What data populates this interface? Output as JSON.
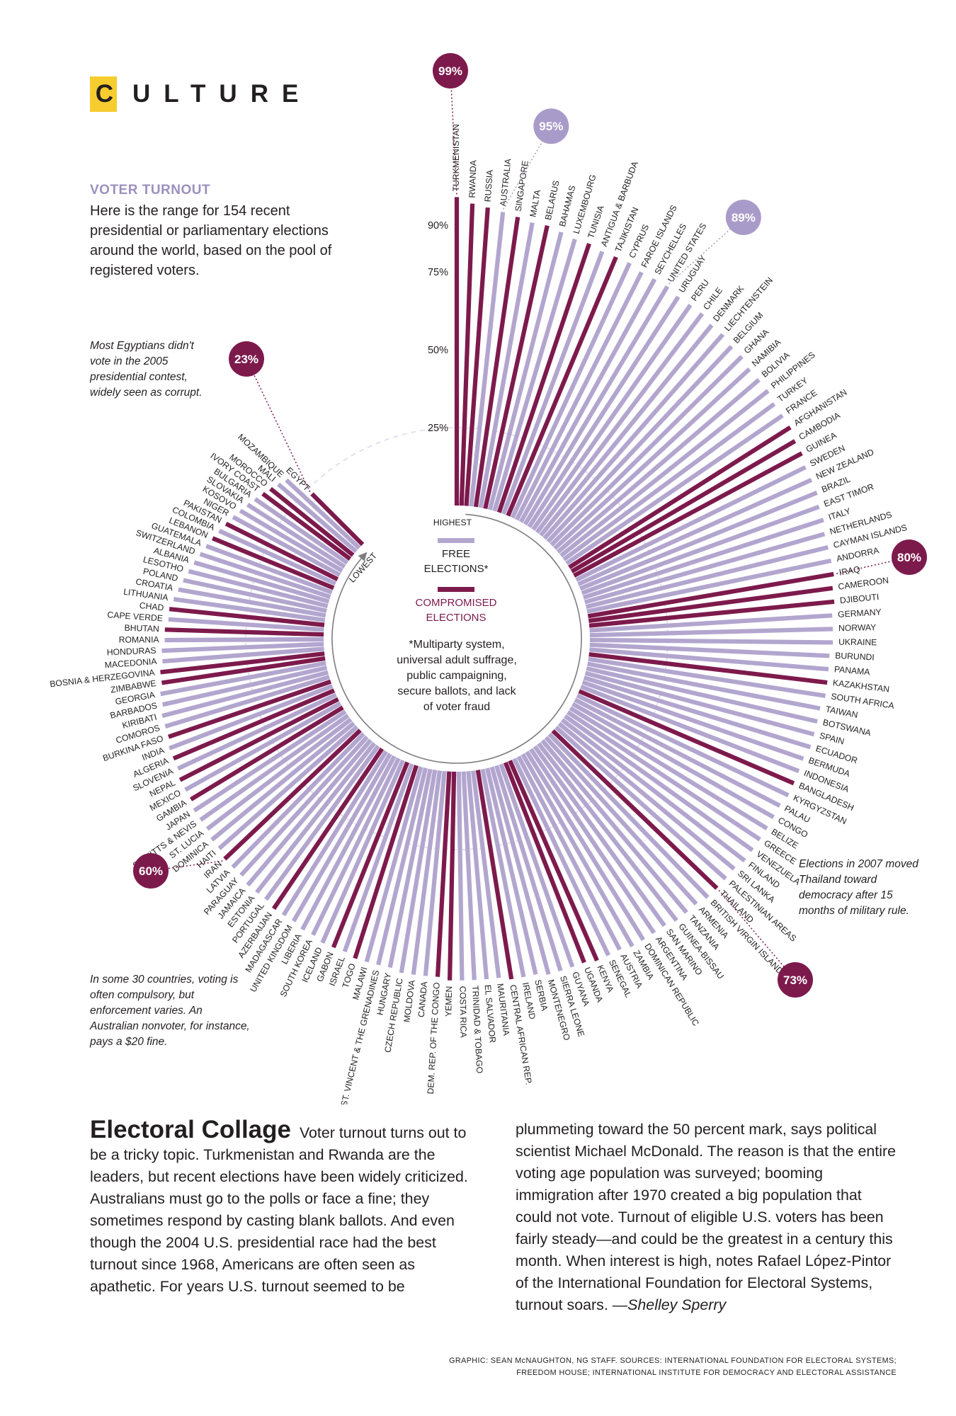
{
  "header": {
    "first_letter": "C",
    "rest": "ULTURE"
  },
  "intro": {
    "title": "VOTER TURNOUT",
    "text": "Here is the range for 154 recent presidential or parliamentary elections around the world, based on the pool of registered voters."
  },
  "notes": {
    "egypt": "Most Egyptians didn't vote in the 2005 presidential contest, widely seen as corrupt.",
    "compulsory": "In some 30 countries, voting is often compulsory, but enforcement varies. An Australian nonvoter, for instance, pays a $20 fine.",
    "thailand": "Elections in 2007 moved Thailand toward democracy after 15 months of military rule."
  },
  "legend": {
    "free_label_1": "FREE",
    "free_label_2": "ELECTIONS*",
    "compromised_label_1": "COMPROMISED",
    "compromised_label_2": "ELECTIONS",
    "footnote": [
      "*Multiparty system,",
      "universal adult suffrage,",
      "public campaigning,",
      "secure ballots, and lack",
      "of voter fraud"
    ],
    "highest_label": "HIGHEST",
    "lowest_label": "LOWEST"
  },
  "colors": {
    "free": "#b2a6cf",
    "compromised": "#7d1a4c",
    "highlight_free": "#a99bc9",
    "header_box": "#f6cc2f"
  },
  "chart_data": {
    "type": "radial-bar",
    "scale_ticks": [
      {
        "value": 25,
        "label": "25%"
      },
      {
        "value": 50,
        "label": "50%"
      },
      {
        "value": 75,
        "label": "75%"
      },
      {
        "value": 90,
        "label": "90%"
      }
    ],
    "highlights": [
      {
        "country": "TURKMENISTAN",
        "label": "99%",
        "type": "compromised"
      },
      {
        "country": "AUSTRALIA",
        "label": "95%",
        "type": "free"
      },
      {
        "country": "UNITED STATES",
        "label": "89%",
        "type": "free"
      },
      {
        "country": "IRAQ",
        "label": "80%",
        "type": "compromised"
      },
      {
        "country": "THAILAND",
        "label": "73%",
        "type": "compromised"
      },
      {
        "country": "IRAN",
        "label": "60%",
        "type": "compromised"
      },
      {
        "country": "EGYPT",
        "label": "23%",
        "type": "compromised"
      }
    ],
    "countries": [
      {
        "name": "TURKMENISTAN",
        "value": 99,
        "type": "compromised"
      },
      {
        "name": "RWANDA",
        "value": 97,
        "type": "compromised"
      },
      {
        "name": "RUSSIA",
        "value": 96,
        "type": "compromised"
      },
      {
        "name": "AUSTRALIA",
        "value": 95,
        "type": "free"
      },
      {
        "name": "SINGAPORE",
        "value": 94,
        "type": "compromised"
      },
      {
        "name": "MALTA",
        "value": 93,
        "type": "free"
      },
      {
        "name": "BELARUS",
        "value": 93,
        "type": "compromised"
      },
      {
        "name": "BAHAMAS",
        "value": 92,
        "type": "free"
      },
      {
        "name": "LUXEMBOURG",
        "value": 91,
        "type": "free"
      },
      {
        "name": "TUNISIA",
        "value": 91,
        "type": "compromised"
      },
      {
        "name": "ANTIGUA & BARBUDA",
        "value": 90,
        "type": "free"
      },
      {
        "name": "TAJIKISTAN",
        "value": 90,
        "type": "compromised"
      },
      {
        "name": "CYPRUS",
        "value": 90,
        "type": "free"
      },
      {
        "name": "FAROE ISLANDS",
        "value": 89,
        "type": "free"
      },
      {
        "name": "SEYCHELLES",
        "value": 89,
        "type": "free"
      },
      {
        "name": "UNITED STATES",
        "value": 89,
        "type": "free"
      },
      {
        "name": "URUGUAY",
        "value": 88,
        "type": "free"
      },
      {
        "name": "PERU",
        "value": 88,
        "type": "free"
      },
      {
        "name": "CHILE",
        "value": 88,
        "type": "free"
      },
      {
        "name": "DENMARK",
        "value": 87,
        "type": "free"
      },
      {
        "name": "LIECHTENSTEIN",
        "value": 87,
        "type": "free"
      },
      {
        "name": "BELGIUM",
        "value": 86,
        "type": "free"
      },
      {
        "name": "GHANA",
        "value": 86,
        "type": "free"
      },
      {
        "name": "NAMIBIA",
        "value": 85,
        "type": "free"
      },
      {
        "name": "BOLIVIA",
        "value": 85,
        "type": "free"
      },
      {
        "name": "PHILIPPINES",
        "value": 85,
        "type": "free"
      },
      {
        "name": "TURKEY",
        "value": 84,
        "type": "free"
      },
      {
        "name": "FRANCE",
        "value": 84,
        "type": "free"
      },
      {
        "name": "AFGHANISTAN",
        "value": 84,
        "type": "compromised"
      },
      {
        "name": "CAMBODIA",
        "value": 83,
        "type": "compromised"
      },
      {
        "name": "GUINEA",
        "value": 83,
        "type": "compromised"
      },
      {
        "name": "SWEDEN",
        "value": 82,
        "type": "free"
      },
      {
        "name": "NEW ZEALAND",
        "value": 82,
        "type": "free"
      },
      {
        "name": "BRAZIL",
        "value": 82,
        "type": "free"
      },
      {
        "name": "EAST TIMOR",
        "value": 81,
        "type": "free"
      },
      {
        "name": "ITALY",
        "value": 81,
        "type": "free"
      },
      {
        "name": "NETHERLANDS",
        "value": 80,
        "type": "free"
      },
      {
        "name": "CAYMAN ISLANDS",
        "value": 80,
        "type": "free"
      },
      {
        "name": "ANDORRA",
        "value": 80,
        "type": "free"
      },
      {
        "name": "IRAQ",
        "value": 80,
        "type": "compromised"
      },
      {
        "name": "CAMEROON",
        "value": 79,
        "type": "compromised"
      },
      {
        "name": "DJIBOUTI",
        "value": 79,
        "type": "compromised"
      },
      {
        "name": "GERMANY",
        "value": 78,
        "type": "free"
      },
      {
        "name": "NORWAY",
        "value": 78,
        "type": "free"
      },
      {
        "name": "UKRAINE",
        "value": 78,
        "type": "free"
      },
      {
        "name": "BURUNDI",
        "value": 77,
        "type": "free"
      },
      {
        "name": "PANAMA",
        "value": 77,
        "type": "free"
      },
      {
        "name": "KAZAKHSTAN",
        "value": 77,
        "type": "compromised"
      },
      {
        "name": "SOUTH AFRICA",
        "value": 77,
        "type": "free"
      },
      {
        "name": "TAIWAN",
        "value": 76,
        "type": "free"
      },
      {
        "name": "BOTSWANA",
        "value": 76,
        "type": "free"
      },
      {
        "name": "SPAIN",
        "value": 76,
        "type": "free"
      },
      {
        "name": "ECUADOR",
        "value": 76,
        "type": "free"
      },
      {
        "name": "BERMUDA",
        "value": 75,
        "type": "free"
      },
      {
        "name": "INDONESIA",
        "value": 75,
        "type": "free"
      },
      {
        "name": "BANGLADESH",
        "value": 75,
        "type": "compromised"
      },
      {
        "name": "KYRGYZSTAN",
        "value": 75,
        "type": "free"
      },
      {
        "name": "PALAU",
        "value": 74,
        "type": "free"
      },
      {
        "name": "CONGO",
        "value": 74,
        "type": "free"
      },
      {
        "name": "BELIZE",
        "value": 74,
        "type": "free"
      },
      {
        "name": "GREECE",
        "value": 74,
        "type": "free"
      },
      {
        "name": "VENEZUELA",
        "value": 74,
        "type": "free"
      },
      {
        "name": "FINLAND",
        "value": 74,
        "type": "free"
      },
      {
        "name": "SRI LANKA",
        "value": 73,
        "type": "free"
      },
      {
        "name": "PALESTINIAN AREAS",
        "value": 73,
        "type": "free"
      },
      {
        "name": "THAILAND",
        "value": 73,
        "type": "compromised"
      },
      {
        "name": "BRITISH VIRGIN ISLANDS",
        "value": 73,
        "type": "free"
      },
      {
        "name": "ARMENIA",
        "value": 72,
        "type": "free"
      },
      {
        "name": "TANZANIA",
        "value": 72,
        "type": "free"
      },
      {
        "name": "GUINEA-BISSAU",
        "value": 72,
        "type": "free"
      },
      {
        "name": "SAN MARINO",
        "value": 71,
        "type": "free"
      },
      {
        "name": "ARGENTINA",
        "value": 71,
        "type": "free"
      },
      {
        "name": "DOMINICAN REPUBLIC",
        "value": 71,
        "type": "free"
      },
      {
        "name": "ZAMBIA",
        "value": 71,
        "type": "free"
      },
      {
        "name": "AUSTRIA",
        "value": 70,
        "type": "free"
      },
      {
        "name": "SENEGAL",
        "value": 70,
        "type": "free"
      },
      {
        "name": "KENYA",
        "value": 70,
        "type": "compromised"
      },
      {
        "name": "UGANDA",
        "value": 69,
        "type": "compromised"
      },
      {
        "name": "GUYANA",
        "value": 69,
        "type": "free"
      },
      {
        "name": "SIERRA LEONE",
        "value": 69,
        "type": "free"
      },
      {
        "name": "MONTENEGRO",
        "value": 69,
        "type": "free"
      },
      {
        "name": "SERBIA",
        "value": 68,
        "type": "free"
      },
      {
        "name": "IRELAND",
        "value": 68,
        "type": "free"
      },
      {
        "name": "CENTRAL AFRICAN REP.",
        "value": 68,
        "type": "compromised"
      },
      {
        "name": "MAURITANIA",
        "value": 67,
        "type": "free"
      },
      {
        "name": "EL SALVADOR",
        "value": 67,
        "type": "free"
      },
      {
        "name": "TRINIDAD & TOBAGO",
        "value": 67,
        "type": "free"
      },
      {
        "name": "COSTA RICA",
        "value": 67,
        "type": "free"
      },
      {
        "name": "YEMEN",
        "value": 67,
        "type": "compromised"
      },
      {
        "name": "DEM. REP. OF THE CONGO",
        "value": 66,
        "type": "compromised"
      },
      {
        "name": "CANADA",
        "value": 66,
        "type": "free"
      },
      {
        "name": "MOLDOVA",
        "value": 66,
        "type": "free"
      },
      {
        "name": "CZECH REPUBLIC",
        "value": 66,
        "type": "free"
      },
      {
        "name": "HUNGARY",
        "value": 65,
        "type": "free"
      },
      {
        "name": "ST. VINCENT & THE GRENADINES",
        "value": 65,
        "type": "free"
      },
      {
        "name": "MALAWI",
        "value": 65,
        "type": "free"
      },
      {
        "name": "TOGO",
        "value": 65,
        "type": "compromised"
      },
      {
        "name": "ISRAEL",
        "value": 64,
        "type": "free"
      },
      {
        "name": "GABON",
        "value": 64,
        "type": "compromised"
      },
      {
        "name": "ICELAND",
        "value": 64,
        "type": "free"
      },
      {
        "name": "SOUTH KOREA",
        "value": 63,
        "type": "free"
      },
      {
        "name": "LIBERIA",
        "value": 63,
        "type": "free"
      },
      {
        "name": "UNITED KINGDOM",
        "value": 62,
        "type": "free"
      },
      {
        "name": "MADAGASCAR",
        "value": 62,
        "type": "free"
      },
      {
        "name": "AZERBAIJAN",
        "value": 62,
        "type": "compromised"
      },
      {
        "name": "PORTUGAL",
        "value": 61,
        "type": "free"
      },
      {
        "name": "ESTONIA",
        "value": 61,
        "type": "free"
      },
      {
        "name": "JAMAICA",
        "value": 61,
        "type": "free"
      },
      {
        "name": "PARAGUAY",
        "value": 60,
        "type": "free"
      },
      {
        "name": "LATVIA",
        "value": 60,
        "type": "free"
      },
      {
        "name": "IRAN",
        "value": 60,
        "type": "compromised"
      },
      {
        "name": "HAITI",
        "value": 59,
        "type": "free"
      },
      {
        "name": "DOMINICA",
        "value": 59,
        "type": "free"
      },
      {
        "name": "ST. LUCIA",
        "value": 58,
        "type": "free"
      },
      {
        "name": "ST. KITTS & NEVIS",
        "value": 58,
        "type": "free"
      },
      {
        "name": "JAPAN",
        "value": 58,
        "type": "free"
      },
      {
        "name": "GAMBIA",
        "value": 57,
        "type": "compromised"
      },
      {
        "name": "MEXICO",
        "value": 57,
        "type": "free"
      },
      {
        "name": "NEPAL",
        "value": 57,
        "type": "compromised"
      },
      {
        "name": "SLOVENIA",
        "value": 56,
        "type": "free"
      },
      {
        "name": "ALGERIA",
        "value": 56,
        "type": "compromised"
      },
      {
        "name": "INDIA",
        "value": 56,
        "type": "free"
      },
      {
        "name": "BURKINA FASO",
        "value": 55,
        "type": "compromised"
      },
      {
        "name": "COMOROS",
        "value": 55,
        "type": "free"
      },
      {
        "name": "KIRIBATI",
        "value": 55,
        "type": "free"
      },
      {
        "name": "BARBADOS",
        "value": 54,
        "type": "free"
      },
      {
        "name": "GEORGIA",
        "value": 54,
        "type": "free"
      },
      {
        "name": "ZIMBABWE",
        "value": 53,
        "type": "compromised"
      },
      {
        "name": "BOSNIA & HERZEGOVINA",
        "value": 53,
        "type": "compromised"
      },
      {
        "name": "MACEDONIA",
        "value": 52,
        "type": "free"
      },
      {
        "name": "HONDURAS",
        "value": 52,
        "type": "free"
      },
      {
        "name": "ROMANIA",
        "value": 51,
        "type": "free"
      },
      {
        "name": "BHUTAN",
        "value": 51,
        "type": "compromised"
      },
      {
        "name": "CAPE VERDE",
        "value": 50,
        "type": "free"
      },
      {
        "name": "CHAD",
        "value": 50,
        "type": "compromised"
      },
      {
        "name": "LITHUANIA",
        "value": 49,
        "type": "free"
      },
      {
        "name": "CROATIA",
        "value": 48,
        "type": "free"
      },
      {
        "name": "POLAND",
        "value": 47,
        "type": "free"
      },
      {
        "name": "LESOTHO",
        "value": 46,
        "type": "free"
      },
      {
        "name": "ALBANIA",
        "value": 45,
        "type": "free"
      },
      {
        "name": "SWITZERLAND",
        "value": 44,
        "type": "free"
      },
      {
        "name": "GUATEMALA",
        "value": 43,
        "type": "free"
      },
      {
        "name": "LEBANON",
        "value": 42,
        "type": "compromised"
      },
      {
        "name": "COLOMBIA",
        "value": 41,
        "type": "free"
      },
      {
        "name": "PAKISTAN",
        "value": 40,
        "type": "compromised"
      },
      {
        "name": "NIGER",
        "value": 39,
        "type": "free"
      },
      {
        "name": "KOSOVO",
        "value": 38,
        "type": "free"
      },
      {
        "name": "SLOVAKIA",
        "value": 37,
        "type": "free"
      },
      {
        "name": "BULGARIA",
        "value": 36,
        "type": "free"
      },
      {
        "name": "IVORY COAST",
        "value": 35,
        "type": "compromised"
      },
      {
        "name": "MOROCCO",
        "value": 34,
        "type": "compromised"
      },
      {
        "name": "MALI",
        "value": 33,
        "type": "free"
      },
      {
        "name": "MOZAMBIQUE",
        "value": 32,
        "type": "free"
      },
      {
        "name": "EGYPT",
        "value": 23,
        "type": "compromised"
      }
    ]
  },
  "article": {
    "headline": "Electoral Collage",
    "body": "Voter turnout turns out to be a tricky topic. Turkmenistan and Rwanda are the leaders, but recent elections have been widely criticized. Australians must go to the polls or face a fine; they sometimes respond by casting blank ballots. And even though the 2004 U.S. presidential race had the best turnout since 1968, Americans are often seen as apathetic. For years U.S. turnout seemed to be plummeting toward the 50 percent mark, says political scientist Michael McDonald. The reason is that the entire voting age population was surveyed; booming immigration after 1970 created a big population that could not vote. Turnout of eligible U.S. voters has been fairly steady—and could be the greatest in a century this month. When interest is high, notes Rafael López-Pintor of the International Foundation for Electoral Systems, turnout soars.",
    "signoff": "—Shelley Sperry"
  },
  "credit": {
    "line1": "GRAPHIC: SEAN McNAUGHTON, NG STAFF. SOURCES: INTERNATIONAL FOUNDATION FOR ELECTORAL SYSTEMS;",
    "line2": "FREEDOM HOUSE; INTERNATIONAL INSTITUTE FOR DEMOCRACY AND ELECTORAL ASSISTANCE"
  }
}
